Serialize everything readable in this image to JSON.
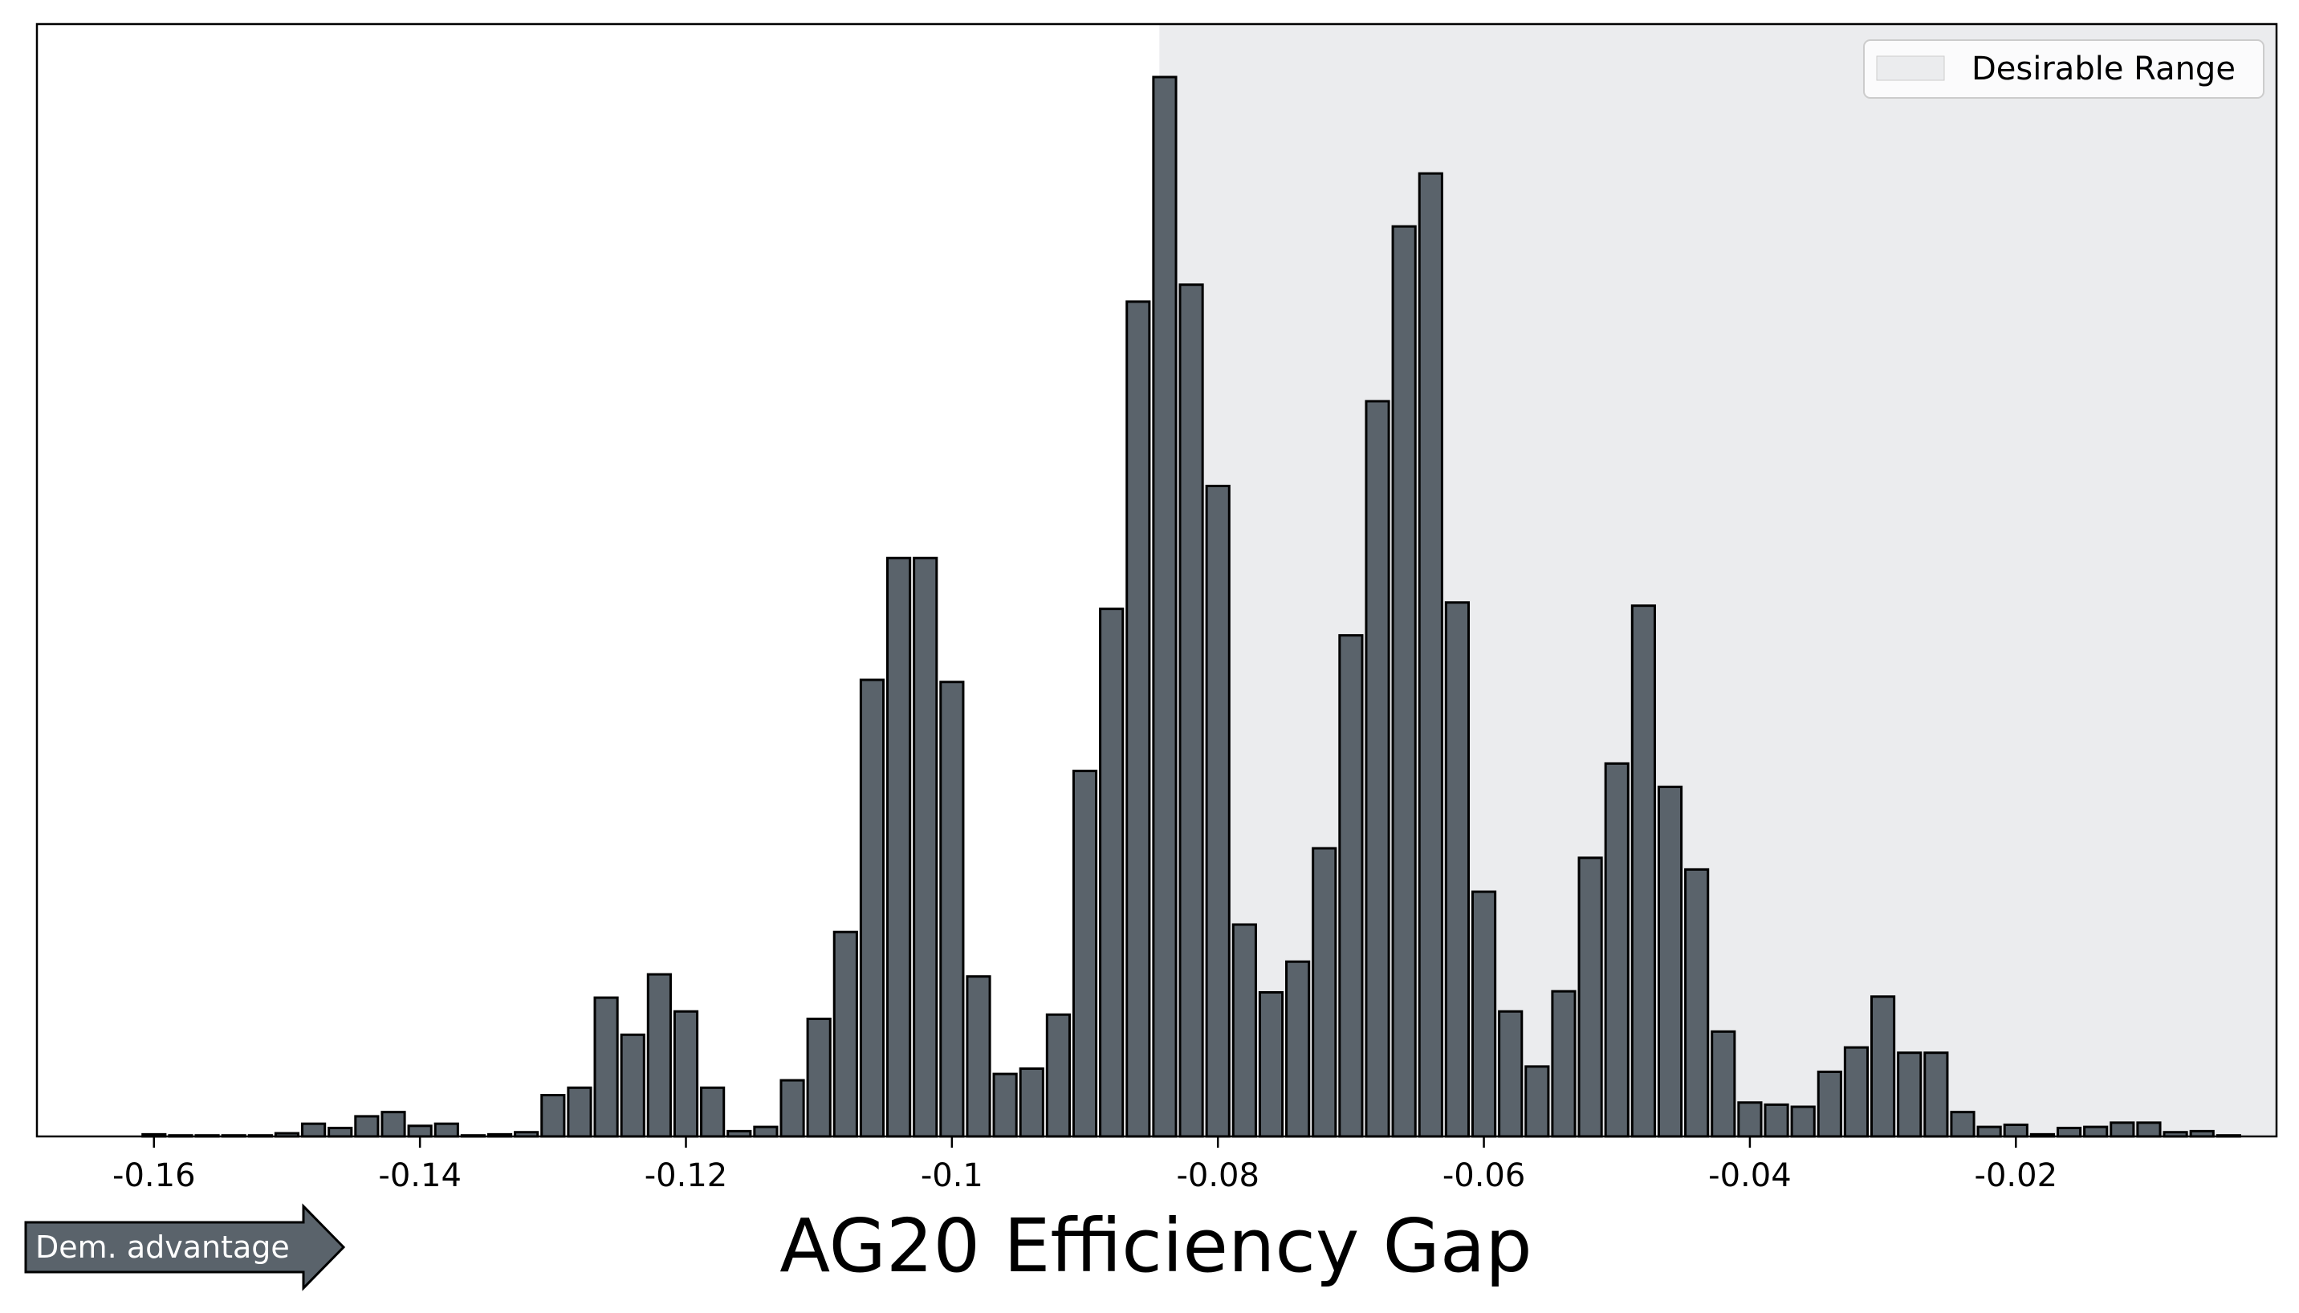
{
  "chart_data": {
    "type": "bar",
    "title": "",
    "xlabel": "AG20 Efficiency Gap",
    "ylabel": "",
    "xlim": [
      -0.1688,
      -0.0004
    ],
    "ylim": [
      0,
      1.05
    ],
    "grid": false,
    "bar_width": 0.0017,
    "x_ticks": [
      -0.16,
      -0.14,
      -0.12,
      -0.1,
      -0.08,
      -0.06,
      -0.04,
      -0.02
    ],
    "x_tick_labels": [
      "-0.16",
      "-0.14",
      "-0.12",
      "-0.1",
      "-0.08",
      "-0.06",
      "-0.04",
      "-0.02"
    ],
    "desirable_range": {
      "x_start": -0.0844,
      "x_end": -0.0004,
      "label": "Desirable Range",
      "color": "#ebecee"
    },
    "legend": {
      "placement": "top-right",
      "label": "Desirable Range"
    },
    "bar_color": "#5a636b",
    "x": [
      -0.16,
      -0.158,
      -0.156,
      -0.154,
      -0.152,
      -0.15,
      -0.148,
      -0.146,
      -0.144,
      -0.142,
      -0.14,
      -0.138,
      -0.136,
      -0.134,
      -0.132,
      -0.13,
      -0.128,
      -0.126,
      -0.124,
      -0.122,
      -0.12,
      -0.118,
      -0.116,
      -0.114,
      -0.112,
      -0.11,
      -0.108,
      -0.106,
      -0.104,
      -0.102,
      -0.1,
      -0.098,
      -0.096,
      -0.094,
      -0.092,
      -0.09,
      -0.088,
      -0.086,
      -0.084,
      -0.082,
      -0.08,
      -0.078,
      -0.076,
      -0.074,
      -0.072,
      -0.07,
      -0.068,
      -0.066,
      -0.064,
      -0.062,
      -0.06,
      -0.058,
      -0.056,
      -0.054,
      -0.052,
      -0.05,
      -0.048,
      -0.046,
      -0.044,
      -0.042,
      -0.04,
      -0.038,
      -0.036,
      -0.034,
      -0.032,
      -0.03,
      -0.028,
      -0.026,
      -0.024,
      -0.022,
      -0.02,
      -0.018,
      -0.016,
      -0.014,
      -0.012,
      -0.01,
      -0.008,
      -0.006,
      -0.004
    ],
    "values": [
      0.002,
      0.001,
      0.001,
      0.001,
      0.001,
      0.003,
      0.012,
      0.008,
      0.019,
      0.023,
      0.01,
      0.012,
      0.001,
      0.002,
      0.004,
      0.039,
      0.046,
      0.131,
      0.096,
      0.153,
      0.118,
      0.046,
      0.005,
      0.009,
      0.053,
      0.111,
      0.193,
      0.431,
      0.546,
      0.546,
      0.429,
      0.151,
      0.059,
      0.064,
      0.115,
      0.345,
      0.498,
      0.788,
      1.0,
      0.804,
      0.614,
      0.2,
      0.136,
      0.165,
      0.272,
      0.473,
      0.694,
      0.859,
      0.909,
      0.504,
      0.231,
      0.118,
      0.066,
      0.137,
      0.263,
      0.352,
      0.501,
      0.33,
      0.252,
      0.099,
      0.032,
      0.03,
      0.028,
      0.061,
      0.084,
      0.132,
      0.079,
      0.079,
      0.023,
      0.009,
      0.011,
      0.002,
      0.008,
      0.009,
      0.013,
      0.013,
      0.004,
      0.005,
      0.001
    ]
  },
  "annotation": {
    "arrow_label": "Dem. advantage",
    "arrow_color": "#5a636b"
  }
}
